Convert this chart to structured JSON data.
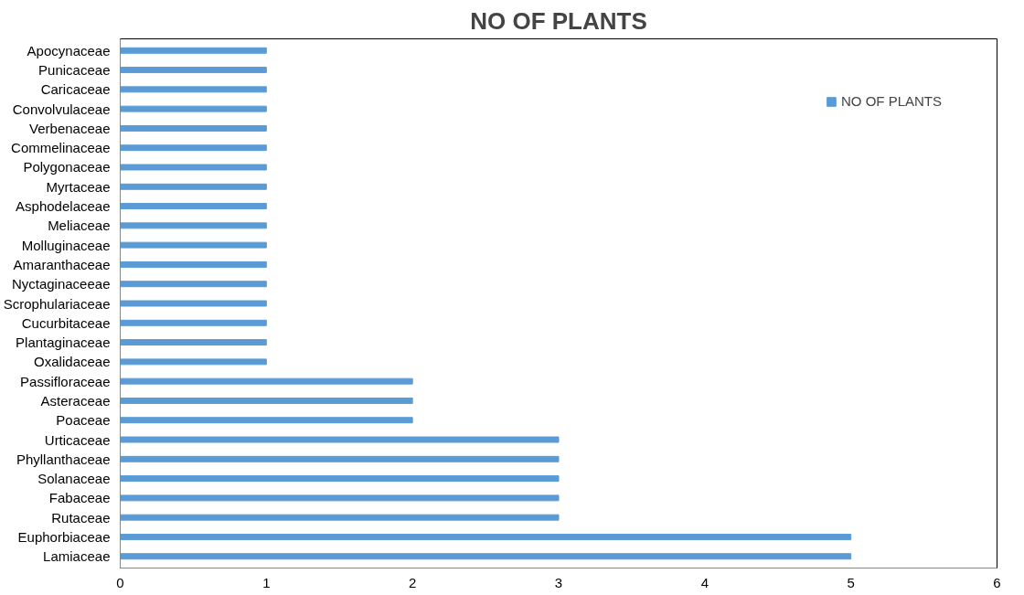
{
  "chart_data": {
    "type": "bar",
    "orientation": "horizontal",
    "title": "NO OF PLANTS",
    "categories": [
      "Apocynaceae",
      "Punicaceae",
      "Caricaceae",
      "Convolvulaceae",
      "Verbenaceae",
      "Commelinaceae",
      "Polygonaceae",
      "Myrtaceae",
      "Asphodelaceae",
      "Meliaceae",
      "Molluginaceae",
      "Amaranthaceae",
      "Nyctaginaceeae",
      "Scrophulariaceae",
      "Cucurbitaceae",
      "Plantaginaceae",
      "Oxalidaceae",
      "Passifloraceae",
      "Asteraceae",
      "Poaceae",
      "Urticaceae",
      "Phyllanthaceae",
      "Solanaceae",
      "Fabaceae",
      "Rutaceae",
      "Euphorbiaceae",
      "Lamiaceae"
    ],
    "series": [
      {
        "name": "NO OF PLANTS",
        "color": "#5b9bd5",
        "values": [
          1,
          1,
          1,
          1,
          1,
          1,
          1,
          1,
          1,
          1,
          1,
          1,
          1,
          1,
          1,
          1,
          1,
          2,
          2,
          2,
          3,
          3,
          3,
          3,
          3,
          5,
          5
        ]
      }
    ],
    "xlim": [
      0,
      6
    ],
    "xticks": [
      0,
      1,
      2,
      3,
      4,
      5,
      6
    ],
    "grid": false,
    "legend": "top right"
  }
}
